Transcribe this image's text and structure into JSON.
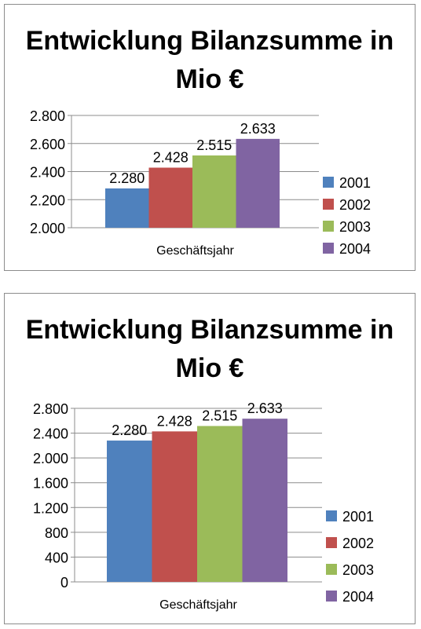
{
  "chart_data": [
    {
      "type": "bar",
      "title": "Entwicklung Bilanzsumme in Mio €",
      "xlabel": "Geschäftsjahr",
      "ylabel": "",
      "categories": [
        "Geschäftsjahr"
      ],
      "series": [
        {
          "name": "2001",
          "values": [
            2280
          ],
          "label": "2.280",
          "color": "#4f81bd"
        },
        {
          "name": "2002",
          "values": [
            2428
          ],
          "label": "2.428",
          "color": "#c0504d"
        },
        {
          "name": "2003",
          "values": [
            2515
          ],
          "label": "2.515",
          "color": "#9bbb59"
        },
        {
          "name": "2004",
          "values": [
            2633
          ],
          "label": "2.633",
          "color": "#8064a2"
        }
      ],
      "ylim": [
        2000,
        2800
      ],
      "yticks": [
        2000,
        2200,
        2400,
        2600,
        2800
      ],
      "ytick_labels": [
        "2.000",
        "2.200",
        "2.400",
        "2.600",
        "2.800"
      ],
      "grid": true,
      "legend": "right"
    },
    {
      "type": "bar",
      "title": "Entwicklung Bilanzsumme in Mio €",
      "xlabel": "Geschäftsjahr",
      "ylabel": "",
      "categories": [
        "Geschäftsjahr"
      ],
      "series": [
        {
          "name": "2001",
          "values": [
            2280
          ],
          "label": "2.280",
          "color": "#4f81bd"
        },
        {
          "name": "2002",
          "values": [
            2428
          ],
          "label": "2.428",
          "color": "#c0504d"
        },
        {
          "name": "2003",
          "values": [
            2515
          ],
          "label": "2.515",
          "color": "#9bbb59"
        },
        {
          "name": "2004",
          "values": [
            2633
          ],
          "label": "2.633",
          "color": "#8064a2"
        }
      ],
      "ylim": [
        0,
        2800
      ],
      "yticks": [
        0,
        400,
        800,
        1200,
        1600,
        2000,
        2400,
        2800
      ],
      "ytick_labels": [
        "0",
        "400",
        "800",
        "1.200",
        "1.600",
        "2.000",
        "2.400",
        "2.800"
      ],
      "grid": true,
      "legend": "right"
    }
  ]
}
